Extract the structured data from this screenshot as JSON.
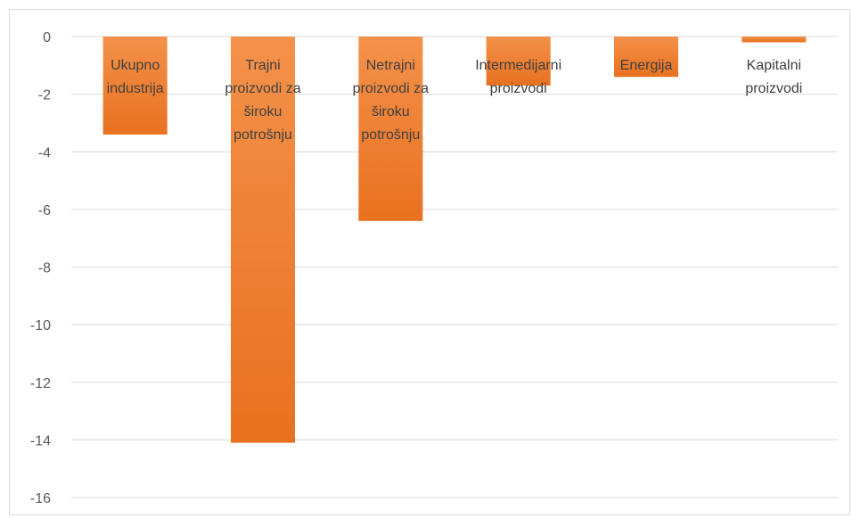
{
  "chart_data": {
    "type": "bar",
    "categories": [
      [
        "Ukupno",
        "industrija"
      ],
      [
        "Trajni",
        "proizvodi za",
        "široku",
        "potrošnju"
      ],
      [
        "Netrajni",
        "proizvodi za",
        "široku",
        "potrošnju"
      ],
      [
        "Intermedijarni",
        "proizvodi"
      ],
      [
        "Energija"
      ],
      [
        "Kapitalni",
        "proizvodi"
      ]
    ],
    "values": [
      -3.4,
      -14.1,
      -6.4,
      -1.7,
      -1.4,
      -0.2
    ],
    "ylim": [
      -16,
      0
    ],
    "yticks": [
      0,
      -2,
      -4,
      -6,
      -8,
      -10,
      -12,
      -14,
      -16
    ],
    "grid": true,
    "legend": "none",
    "colors": {
      "bar_top": "#f4914a",
      "bar_bottom": "#e8711f",
      "grid": "#d9d9d9",
      "tick_text": "#595959",
      "label_text": "#404040"
    }
  }
}
